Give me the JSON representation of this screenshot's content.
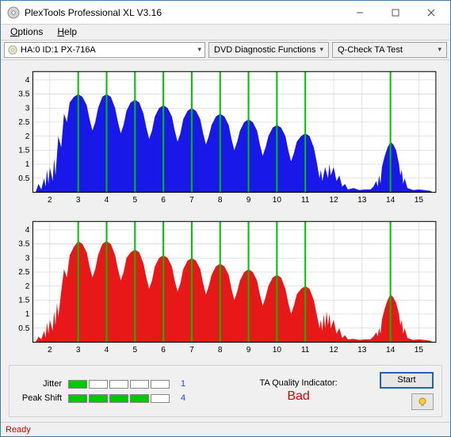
{
  "window": {
    "title": "PlexTools Professional XL V3.16"
  },
  "menu": {
    "options": "Options",
    "help": "Help"
  },
  "toolbar": {
    "drive": "HA:0 ID:1    PX-716A",
    "diag": "DVD Diagnostic Functions",
    "test": "Q-Check TA Test"
  },
  "charts": {
    "plot_bg": "#ffffff",
    "grid_color": "#c8c8c8",
    "marker_color": "#00c000",
    "axis_fontsize": 10,
    "x_ticks": [
      2,
      3,
      4,
      5,
      6,
      7,
      8,
      9,
      10,
      11,
      12,
      13,
      14,
      15
    ],
    "y_ticks": [
      0.5,
      1,
      1.5,
      2,
      2.5,
      3,
      3.5,
      4
    ],
    "x_min": 1.4,
    "x_max": 15.6,
    "y_min": 0,
    "y_max": 4.3,
    "markers_x": [
      3,
      4,
      5,
      6,
      7,
      8,
      9,
      10,
      11,
      14
    ],
    "top": {
      "fill_color": "#1818e8",
      "points": [
        [
          1.5,
          0
        ],
        [
          1.6,
          0.3
        ],
        [
          1.7,
          0.1
        ],
        [
          1.8,
          0.5
        ],
        [
          1.85,
          0.2
        ],
        [
          1.9,
          0.8
        ],
        [
          1.95,
          0.3
        ],
        [
          2.0,
          0.9
        ],
        [
          2.1,
          0.4
        ],
        [
          2.15,
          1.2
        ],
        [
          2.2,
          0.6
        ],
        [
          2.3,
          2.0
        ],
        [
          2.4,
          1.6
        ],
        [
          2.5,
          2.8
        ],
        [
          2.6,
          2.5
        ],
        [
          2.7,
          3.2
        ],
        [
          2.85,
          3.4
        ],
        [
          3.0,
          3.5
        ],
        [
          3.15,
          3.4
        ],
        [
          3.3,
          3.1
        ],
        [
          3.4,
          2.6
        ],
        [
          3.5,
          2.2
        ],
        [
          3.6,
          2.5
        ],
        [
          3.7,
          3.0
        ],
        [
          3.85,
          3.4
        ],
        [
          4.0,
          3.5
        ],
        [
          4.15,
          3.4
        ],
        [
          4.3,
          3.0
        ],
        [
          4.4,
          2.5
        ],
        [
          4.5,
          2.1
        ],
        [
          4.6,
          2.4
        ],
        [
          4.7,
          2.9
        ],
        [
          4.85,
          3.2
        ],
        [
          5.0,
          3.3
        ],
        [
          5.15,
          3.2
        ],
        [
          5.3,
          2.8
        ],
        [
          5.4,
          2.3
        ],
        [
          5.5,
          1.9
        ],
        [
          5.6,
          2.2
        ],
        [
          5.7,
          2.7
        ],
        [
          5.85,
          3.0
        ],
        [
          6.0,
          3.1
        ],
        [
          6.15,
          3.0
        ],
        [
          6.3,
          2.7
        ],
        [
          6.4,
          2.2
        ],
        [
          6.5,
          1.8
        ],
        [
          6.6,
          2.1
        ],
        [
          6.7,
          2.6
        ],
        [
          6.85,
          2.9
        ],
        [
          7.0,
          3.0
        ],
        [
          7.15,
          2.9
        ],
        [
          7.3,
          2.6
        ],
        [
          7.4,
          2.1
        ],
        [
          7.5,
          1.7
        ],
        [
          7.6,
          2.0
        ],
        [
          7.7,
          2.4
        ],
        [
          7.85,
          2.7
        ],
        [
          8.0,
          2.8
        ],
        [
          8.15,
          2.7
        ],
        [
          8.3,
          2.4
        ],
        [
          8.4,
          1.9
        ],
        [
          8.5,
          1.5
        ],
        [
          8.6,
          1.8
        ],
        [
          8.7,
          2.2
        ],
        [
          8.85,
          2.5
        ],
        [
          9.0,
          2.6
        ],
        [
          9.15,
          2.5
        ],
        [
          9.3,
          2.2
        ],
        [
          9.4,
          1.7
        ],
        [
          9.5,
          1.3
        ],
        [
          9.6,
          1.6
        ],
        [
          9.7,
          2.0
        ],
        [
          9.85,
          2.3
        ],
        [
          10.0,
          2.4
        ],
        [
          10.15,
          2.3
        ],
        [
          10.3,
          2.0
        ],
        [
          10.4,
          1.5
        ],
        [
          10.5,
          1.1
        ],
        [
          10.6,
          1.4
        ],
        [
          10.7,
          1.8
        ],
        [
          10.85,
          2.0
        ],
        [
          11.0,
          2.1
        ],
        [
          11.15,
          2.0
        ],
        [
          11.3,
          1.6
        ],
        [
          11.4,
          1.1
        ],
        [
          11.5,
          0.5
        ],
        [
          11.55,
          0.8
        ],
        [
          11.6,
          0.4
        ],
        [
          11.7,
          0.9
        ],
        [
          11.8,
          0.5
        ],
        [
          11.85,
          1.0
        ],
        [
          11.9,
          0.6
        ],
        [
          12.0,
          0.9
        ],
        [
          12.1,
          0.4
        ],
        [
          12.2,
          0.6
        ],
        [
          12.3,
          0.2
        ],
        [
          12.4,
          0.3
        ],
        [
          12.5,
          0.1
        ],
        [
          12.7,
          0.15
        ],
        [
          12.9,
          0.08
        ],
        [
          13.1,
          0.1
        ],
        [
          13.3,
          0.1
        ],
        [
          13.4,
          0.2
        ],
        [
          13.5,
          0.4
        ],
        [
          13.55,
          0.2
        ],
        [
          13.6,
          0.6
        ],
        [
          13.65,
          0.3
        ],
        [
          13.7,
          0.9
        ],
        [
          13.8,
          1.3
        ],
        [
          13.9,
          1.6
        ],
        [
          14.0,
          1.8
        ],
        [
          14.1,
          1.7
        ],
        [
          14.2,
          1.5
        ],
        [
          14.3,
          1.0
        ],
        [
          14.35,
          0.6
        ],
        [
          14.4,
          0.8
        ],
        [
          14.45,
          0.3
        ],
        [
          14.5,
          0.5
        ],
        [
          14.6,
          0.15
        ],
        [
          14.8,
          0.08
        ],
        [
          15.0,
          0.1
        ],
        [
          15.2,
          0.08
        ],
        [
          15.4,
          0.05
        ],
        [
          15.5,
          0
        ]
      ]
    },
    "bottom": {
      "fill_color": "#e81818",
      "points": [
        [
          1.5,
          0
        ],
        [
          1.6,
          0.2
        ],
        [
          1.7,
          0.1
        ],
        [
          1.8,
          0.4
        ],
        [
          1.85,
          0.15
        ],
        [
          1.9,
          0.7
        ],
        [
          1.95,
          0.3
        ],
        [
          2.0,
          0.8
        ],
        [
          2.1,
          0.4
        ],
        [
          2.15,
          1.1
        ],
        [
          2.2,
          0.6
        ],
        [
          2.25,
          1.4
        ],
        [
          2.3,
          0.9
        ],
        [
          2.4,
          1.8
        ],
        [
          2.5,
          2.6
        ],
        [
          2.6,
          2.3
        ],
        [
          2.7,
          3.1
        ],
        [
          2.85,
          3.4
        ],
        [
          3.0,
          3.6
        ],
        [
          3.15,
          3.5
        ],
        [
          3.3,
          3.2
        ],
        [
          3.4,
          2.7
        ],
        [
          3.5,
          2.3
        ],
        [
          3.6,
          2.6
        ],
        [
          3.7,
          3.1
        ],
        [
          3.85,
          3.5
        ],
        [
          4.0,
          3.6
        ],
        [
          4.15,
          3.5
        ],
        [
          4.3,
          3.1
        ],
        [
          4.4,
          2.6
        ],
        [
          4.5,
          2.2
        ],
        [
          4.6,
          2.5
        ],
        [
          4.7,
          3.0
        ],
        [
          4.85,
          3.2
        ],
        [
          5.0,
          3.3
        ],
        [
          5.15,
          3.2
        ],
        [
          5.3,
          2.8
        ],
        [
          5.4,
          2.3
        ],
        [
          5.5,
          1.9
        ],
        [
          5.6,
          2.2
        ],
        [
          5.7,
          2.7
        ],
        [
          5.85,
          3.0
        ],
        [
          6.0,
          3.1
        ],
        [
          6.15,
          3.0
        ],
        [
          6.3,
          2.7
        ],
        [
          6.4,
          2.2
        ],
        [
          6.5,
          1.8
        ],
        [
          6.6,
          2.1
        ],
        [
          6.7,
          2.6
        ],
        [
          6.85,
          2.9
        ],
        [
          7.0,
          3.0
        ],
        [
          7.15,
          2.9
        ],
        [
          7.3,
          2.6
        ],
        [
          7.4,
          2.1
        ],
        [
          7.5,
          1.7
        ],
        [
          7.6,
          2.0
        ],
        [
          7.7,
          2.4
        ],
        [
          7.85,
          2.7
        ],
        [
          8.0,
          2.8
        ],
        [
          8.15,
          2.7
        ],
        [
          8.3,
          2.4
        ],
        [
          8.4,
          1.9
        ],
        [
          8.5,
          1.5
        ],
        [
          8.6,
          1.8
        ],
        [
          8.7,
          2.2
        ],
        [
          8.85,
          2.5
        ],
        [
          9.0,
          2.6
        ],
        [
          9.15,
          2.5
        ],
        [
          9.3,
          2.2
        ],
        [
          9.4,
          1.7
        ],
        [
          9.5,
          1.3
        ],
        [
          9.6,
          1.6
        ],
        [
          9.7,
          2.0
        ],
        [
          9.85,
          2.3
        ],
        [
          10.0,
          2.4
        ],
        [
          10.15,
          2.3
        ],
        [
          10.3,
          1.9
        ],
        [
          10.4,
          1.4
        ],
        [
          10.5,
          1.0
        ],
        [
          10.6,
          1.3
        ],
        [
          10.7,
          1.7
        ],
        [
          10.85,
          1.9
        ],
        [
          11.0,
          2.0
        ],
        [
          11.15,
          1.9
        ],
        [
          11.3,
          1.5
        ],
        [
          11.4,
          1.0
        ],
        [
          11.5,
          0.5
        ],
        [
          11.55,
          0.8
        ],
        [
          11.6,
          0.4
        ],
        [
          11.65,
          1.0
        ],
        [
          11.7,
          0.5
        ],
        [
          11.75,
          1.1
        ],
        [
          11.8,
          0.6
        ],
        [
          11.85,
          1.0
        ],
        [
          11.9,
          0.5
        ],
        [
          12.0,
          0.8
        ],
        [
          12.1,
          0.3
        ],
        [
          12.2,
          0.5
        ],
        [
          12.3,
          0.15
        ],
        [
          12.4,
          0.25
        ],
        [
          12.5,
          0.1
        ],
        [
          12.7,
          0.12
        ],
        [
          12.9,
          0.08
        ],
        [
          13.1,
          0.1
        ],
        [
          13.3,
          0.1
        ],
        [
          13.4,
          0.2
        ],
        [
          13.5,
          0.35
        ],
        [
          13.55,
          0.2
        ],
        [
          13.6,
          0.5
        ],
        [
          13.65,
          0.3
        ],
        [
          13.7,
          0.8
        ],
        [
          13.8,
          1.2
        ],
        [
          13.9,
          1.5
        ],
        [
          14.0,
          1.7
        ],
        [
          14.1,
          1.6
        ],
        [
          14.2,
          1.4
        ],
        [
          14.3,
          1.0
        ],
        [
          14.35,
          0.6
        ],
        [
          14.4,
          0.8
        ],
        [
          14.45,
          0.3
        ],
        [
          14.5,
          0.5
        ],
        [
          14.6,
          0.15
        ],
        [
          14.8,
          0.08
        ],
        [
          15.0,
          0.1
        ],
        [
          15.2,
          0.08
        ],
        [
          15.4,
          0.05
        ],
        [
          15.5,
          0
        ]
      ]
    }
  },
  "metrics": {
    "jitter": {
      "label": "Jitter",
      "filled": 1,
      "total": 5,
      "value": "1"
    },
    "peak_shift": {
      "label": "Peak Shift",
      "filled": 4,
      "total": 5,
      "value": "4"
    }
  },
  "ta": {
    "label": "TA Quality Indicator:",
    "value": "Bad",
    "value_color": "#e00000"
  },
  "buttons": {
    "start": "Start"
  },
  "status": {
    "text": "Ready",
    "color": "#d00000"
  }
}
